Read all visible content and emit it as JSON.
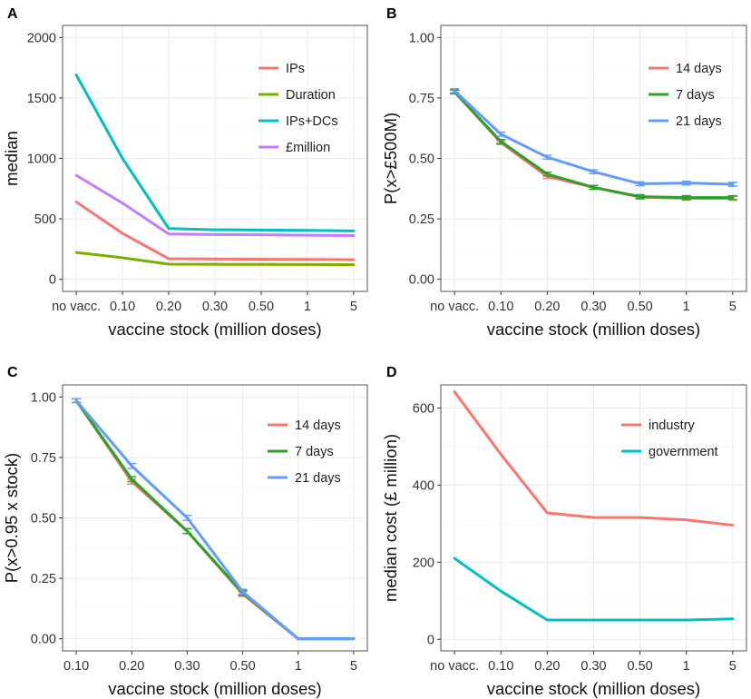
{
  "colors": {
    "red": "#F8766D",
    "olive": "#7CAE00",
    "teal": "#00BFC4",
    "purple": "#C77CFF",
    "green": "#2CA02C",
    "blue": "#619CFF"
  },
  "chart_data": [
    {
      "panel": "A",
      "type": "line",
      "title": "",
      "xlabel": "vaccine stock (million doses)",
      "ylabel": "median",
      "categories": [
        "no vacc.",
        "0.10",
        "0.20",
        "0.30",
        "0.50",
        "1",
        "5"
      ],
      "ylim": [
        -100,
        2100
      ],
      "yticks": [
        0,
        500,
        1000,
        1500,
        2000
      ],
      "ytick_labels": [
        "0",
        "500",
        "1000",
        "1500",
        "2000"
      ],
      "legend": "top-right",
      "series": [
        {
          "name": "IPs",
          "color": "#F8766D",
          "values": [
            640,
            380,
            170,
            168,
            166,
            165,
            162
          ]
        },
        {
          "name": "Duration",
          "color": "#7CAE00",
          "values": [
            222,
            178,
            125,
            124,
            123,
            122,
            121
          ]
        },
        {
          "name": "IPs+DCs",
          "color": "#00BFC4",
          "values": [
            1690,
            1000,
            420,
            410,
            408,
            405,
            400
          ]
        },
        {
          "name": "£million",
          "color": "#C77CFF",
          "values": [
            860,
            630,
            375,
            370,
            368,
            365,
            362
          ]
        }
      ]
    },
    {
      "panel": "B",
      "type": "line",
      "title": "",
      "xlabel": "vaccine stock (million doses)",
      "ylabel": "P(x>£500M)",
      "categories": [
        "no vacc.",
        "0.10",
        "0.20",
        "0.30",
        "0.50",
        "1",
        "5"
      ],
      "ylim": [
        -0.05,
        1.05
      ],
      "yticks": [
        0,
        0.25,
        0.5,
        0.75,
        1
      ],
      "ytick_labels": [
        "0.00",
        "0.25",
        "0.50",
        "0.75",
        "1.00"
      ],
      "legend": "top-right",
      "error_bars": true,
      "series": [
        {
          "name": "14 days",
          "color": "#F8766D",
          "values": [
            0.775,
            0.565,
            0.425,
            0.38,
            0.34,
            0.335,
            0.335
          ],
          "err": [
            0.008,
            0.008,
            0.008,
            0.008,
            0.008,
            0.008,
            0.008
          ]
        },
        {
          "name": "7 days",
          "color": "#2CA02C",
          "values": [
            0.775,
            0.57,
            0.435,
            0.38,
            0.342,
            0.338,
            0.338
          ],
          "err": [
            0.008,
            0.008,
            0.008,
            0.008,
            0.008,
            0.008,
            0.008
          ]
        },
        {
          "name": "21 days",
          "color": "#619CFF",
          "values": [
            0.78,
            0.6,
            0.505,
            0.445,
            0.395,
            0.398,
            0.393
          ],
          "err": [
            0.008,
            0.008,
            0.008,
            0.008,
            0.008,
            0.008,
            0.008
          ]
        }
      ]
    },
    {
      "panel": "C",
      "type": "line",
      "title": "",
      "xlabel": "vaccine stock (million doses)",
      "ylabel": "P(x>0.95 x stock)",
      "categories": [
        "0.10",
        "0.20",
        "0.30",
        "0.50",
        "1",
        "5"
      ],
      "ylim": [
        -0.05,
        1.05
      ],
      "yticks": [
        0,
        0.25,
        0.5,
        0.75,
        1
      ],
      "ytick_labels": [
        "0.00",
        "0.25",
        "0.50",
        "0.75",
        "1.00"
      ],
      "legend": "top-right",
      "error_bars": true,
      "series": [
        {
          "name": "14 days",
          "color": "#F8766D",
          "values": [
            0.985,
            0.65,
            0.445,
            0.185,
            0,
            0
          ],
          "err": [
            0.008,
            0.01,
            0.01,
            0.01,
            0,
            0
          ]
        },
        {
          "name": "7 days",
          "color": "#2CA02C",
          "values": [
            0.985,
            0.66,
            0.445,
            0.19,
            0,
            0
          ],
          "err": [
            0.008,
            0.01,
            0.01,
            0.01,
            0,
            0
          ]
        },
        {
          "name": "21 days",
          "color": "#619CFF",
          "values": [
            0.985,
            0.715,
            0.5,
            0.195,
            0,
            0
          ],
          "err": [
            0.008,
            0.01,
            0.01,
            0.01,
            0,
            0
          ]
        }
      ]
    },
    {
      "panel": "D",
      "type": "line",
      "title": "",
      "xlabel": "vaccine stock (million doses)",
      "ylabel": "median cost (£ million)",
      "categories": [
        "no vacc.",
        "0.10",
        "0.20",
        "0.30",
        "0.50",
        "1",
        "5"
      ],
      "ylim": [
        -30,
        660
      ],
      "yticks": [
        0,
        200,
        400,
        600
      ],
      "ytick_labels": [
        "0",
        "200",
        "400",
        "600"
      ],
      "legend": "top-right",
      "series": [
        {
          "name": "industry",
          "color": "#F8766D",
          "values": [
            642,
            480,
            328,
            316,
            316,
            310,
            296
          ]
        },
        {
          "name": "government",
          "color": "#00BFC4",
          "values": [
            210,
            125,
            50,
            50,
            50,
            50,
            53
          ]
        }
      ]
    }
  ]
}
